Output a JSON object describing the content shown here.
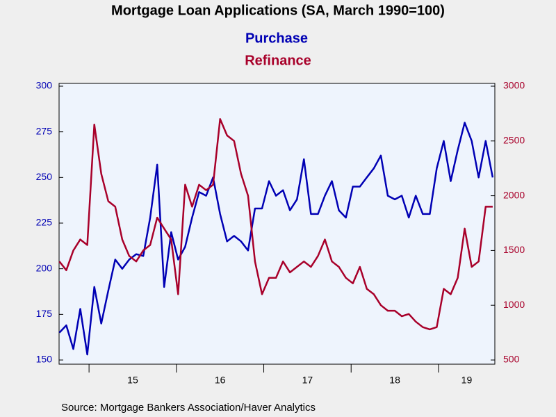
{
  "chart_data": {
    "type": "line",
    "title": "Mortgage Loan Applications (SA, March 1990=100)",
    "source": "Source:  Mortgage Bankers Association/Haver Analytics",
    "x": [
      14.66,
      14.74,
      14.82,
      14.9,
      14.98,
      15.06,
      15.14,
      15.22,
      15.3,
      15.38,
      15.46,
      15.54,
      15.62,
      15.7,
      15.78,
      15.86,
      15.94,
      16.02,
      16.1,
      16.18,
      16.26,
      16.34,
      16.42,
      16.5,
      16.58,
      16.66,
      16.74,
      16.82,
      16.9,
      16.98,
      17.06,
      17.14,
      17.22,
      17.3,
      17.38,
      17.46,
      17.54,
      17.62,
      17.7,
      17.78,
      17.86,
      17.94,
      18.02,
      18.1,
      18.18,
      18.26,
      18.34,
      18.42,
      18.5,
      18.58,
      18.66,
      18.74,
      18.82,
      18.9,
      18.98,
      19.06,
      19.14,
      19.22,
      19.3,
      19.38,
      19.46,
      19.54,
      19.62
    ],
    "xlim": [
      14.657,
      19.645
    ],
    "xticks": [
      15,
      16,
      17,
      18,
      19
    ],
    "ylim": [
      150,
      300
    ],
    "yticks": [
      150,
      175,
      200,
      225,
      250,
      275,
      300
    ],
    "y2lim": [
      500,
      3000
    ],
    "y2ticks": [
      500,
      1000,
      1500,
      2000,
      2500,
      3000
    ],
    "series": [
      {
        "name": "Purchase",
        "color": "#0000b4",
        "values": [
          165,
          169,
          156,
          178,
          153,
          190,
          170,
          188,
          205,
          200,
          205,
          208,
          207,
          228,
          257,
          190,
          220,
          205,
          212,
          228,
          242,
          240,
          250,
          230,
          215,
          218,
          215,
          210,
          233,
          233,
          248,
          240,
          243,
          232,
          238,
          260,
          230,
          230,
          240,
          248,
          232,
          228,
          245,
          245,
          250,
          255,
          262,
          240,
          238,
          240,
          228,
          240,
          230,
          230,
          255,
          270,
          248,
          265,
          280,
          270,
          250,
          270,
          250
        ]
      },
      {
        "name": "Refinance",
        "color": "#a8002a",
        "axis": "y2",
        "values": [
          1400,
          1320,
          1500,
          1600,
          1550,
          2650,
          2200,
          1950,
          1900,
          1600,
          1450,
          1400,
          1500,
          1550,
          1800,
          1700,
          1600,
          1100,
          2100,
          1900,
          2100,
          2050,
          2100,
          2700,
          2550,
          2500,
          2200,
          2000,
          1400,
          1100,
          1250,
          1250,
          1400,
          1300,
          1350,
          1400,
          1350,
          1450,
          1600,
          1400,
          1350,
          1250,
          1200,
          1350,
          1150,
          1100,
          1000,
          950,
          950,
          900,
          920,
          850,
          800,
          780,
          800,
          1150,
          1100,
          1250,
          1700,
          1350,
          1400,
          1900,
          1900
        ]
      }
    ]
  }
}
